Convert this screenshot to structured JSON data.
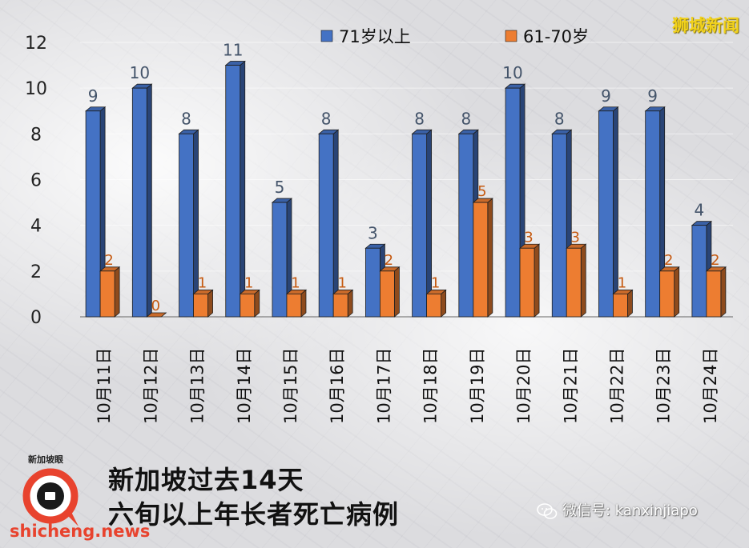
{
  "watermark": "狮城新闻",
  "caption": {
    "line1": "新加坡过去14天",
    "line2": "六旬以上年长者死亡病例"
  },
  "logo": {
    "label": "新加坡眼",
    "site": "shicheng.news"
  },
  "wechat": {
    "text": "微信号: kanxinjiapo",
    "icon": "wechat-icon"
  },
  "colors": {
    "series1": "#4472C4",
    "series2": "#ED7D31",
    "label1": "#44546A",
    "label2": "#C55A11"
  },
  "chart_data": {
    "type": "bar",
    "title": "",
    "xlabel": "",
    "ylabel": "",
    "ylim": [
      0,
      12
    ],
    "yticks": [
      0,
      2,
      4,
      6,
      8,
      10,
      12
    ],
    "legend_position": "top",
    "categories": [
      "10月11日",
      "10月12日",
      "10月13日",
      "10月14日",
      "10月15日",
      "10月16日",
      "10月17日",
      "10月18日",
      "10月19日",
      "10月20日",
      "10月21日",
      "10月22日",
      "10月23日",
      "10月24日"
    ],
    "series": [
      {
        "name": "71岁以上",
        "values": [
          9,
          10,
          8,
          11,
          5,
          8,
          3,
          8,
          8,
          10,
          8,
          9,
          9,
          4
        ]
      },
      {
        "name": "61-70岁",
        "values": [
          2,
          0,
          1,
          1,
          1,
          1,
          2,
          1,
          5,
          3,
          3,
          1,
          2,
          2
        ]
      }
    ]
  }
}
